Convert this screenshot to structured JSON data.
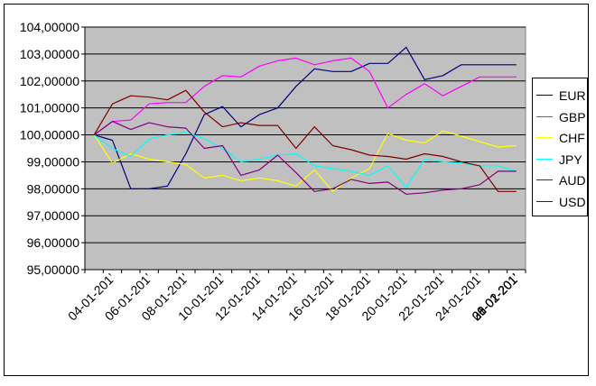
{
  "chart_data": {
    "type": "line",
    "x": [
      "03-01-2011",
      "04-01-2011",
      "05-01-2011",
      "06-01-2011",
      "07-01-2011",
      "08-01-2011",
      "10-01-2011",
      "11-01-2011",
      "12-01-2011",
      "13-01-2011",
      "14-01-2011",
      "17-01-2011",
      "18-01-2011",
      "19-01-2011",
      "20-01-2011",
      "21-01-2011",
      "24-01-2011",
      "25-01-2011",
      "26-01-2011",
      "27-01-2011",
      "28-01-2011",
      "31-01-2011",
      "01-02-2011",
      "02-02-2011"
    ],
    "x_tick_labels": [
      "04-01-201’",
      "06-01-201’",
      "08-01-201’",
      "10-01-201’",
      "12-01-201’",
      "14-01-201’",
      "16-01-201’",
      "18-01-201’",
      "20-01-201’",
      "22-01-201’",
      "24-01-201’",
      "26-01-201’",
      "28-01-201’",
      "30-01-201’",
      "01-02-201’"
    ],
    "y_tick_labels": [
      "95,00000",
      "96,00000",
      "97,00000",
      "98,00000",
      "99,00000",
      "100,00000",
      "101,00000",
      "102,00000",
      "103,00000",
      "104,00000"
    ],
    "ylim": [
      95,
      104
    ],
    "grid": true,
    "legend_position": "right",
    "series": [
      {
        "name": "EUR",
        "color": "#000080",
        "values": [
          100.0,
          99.8,
          98.0,
          98.0,
          98.1,
          99.3,
          100.75,
          101.05,
          100.3,
          100.75,
          101.0,
          101.8,
          102.45,
          102.35,
          102.35,
          102.65,
          102.65,
          103.25,
          102.05,
          102.2,
          102.6,
          102.6,
          102.6,
          102.6
        ]
      },
      {
        "name": "GBP",
        "color": "#ff00ff",
        "values": [
          100.0,
          100.5,
          100.55,
          101.15,
          101.2,
          101.2,
          101.8,
          102.2,
          102.15,
          102.55,
          102.75,
          102.85,
          102.6,
          102.75,
          102.85,
          102.35,
          101.0,
          101.5,
          101.9,
          101.45,
          101.8,
          102.15,
          102.15,
          102.15
        ]
      },
      {
        "name": "CHF",
        "color": "#ffff00",
        "values": [
          100.0,
          98.95,
          99.3,
          99.1,
          99.0,
          98.9,
          98.4,
          98.5,
          98.3,
          98.4,
          98.3,
          98.1,
          98.7,
          97.9,
          98.4,
          98.75,
          100.05,
          99.8,
          99.7,
          100.15,
          99.95,
          99.75,
          99.55,
          99.6
        ]
      },
      {
        "name": "JPY",
        "color": "#00ffff",
        "values": [
          100.0,
          99.5,
          99.2,
          99.85,
          100.0,
          100.1,
          99.85,
          99.5,
          99.0,
          99.1,
          99.25,
          99.3,
          98.85,
          98.75,
          98.65,
          98.5,
          98.85,
          98.05,
          99.1,
          99.0,
          98.95,
          98.85,
          98.85,
          98.65
        ]
      },
      {
        "name": "AUD",
        "color": "#800080",
        "values": [
          100.0,
          100.5,
          100.2,
          100.45,
          100.3,
          100.25,
          99.5,
          99.6,
          98.5,
          98.7,
          99.25,
          98.6,
          97.9,
          98.0,
          98.35,
          98.2,
          98.25,
          97.8,
          97.85,
          97.95,
          98.0,
          98.15,
          98.65,
          98.65
        ]
      },
      {
        "name": "USD",
        "color": "#800000",
        "values": [
          100.0,
          101.15,
          101.45,
          101.4,
          101.3,
          101.65,
          100.85,
          100.3,
          100.45,
          100.35,
          100.35,
          99.5,
          100.3,
          99.6,
          99.45,
          99.25,
          99.2,
          99.1,
          99.3,
          99.2,
          99.0,
          98.85,
          97.9,
          97.9
        ]
      }
    ]
  }
}
